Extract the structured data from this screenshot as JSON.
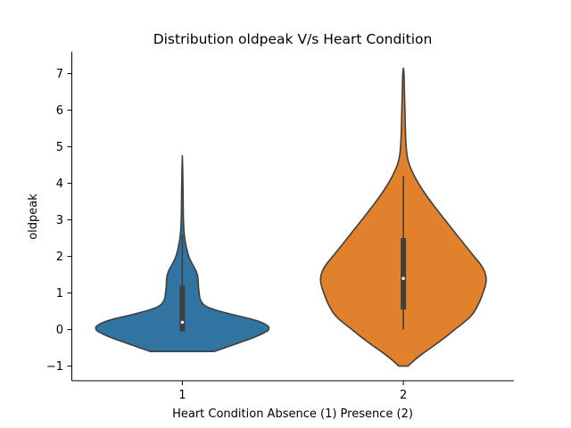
{
  "chart_data": {
    "type": "violin",
    "title": "Distribution oldpeak V/s Heart Condition",
    "xlabel": "Heart Condition Absence (1) Presence (2)",
    "ylabel": "oldpeak",
    "categories": [
      "1",
      "2"
    ],
    "ylim": [
      -1.4,
      7.6
    ],
    "yticks": [
      -1,
      0,
      1,
      2,
      3,
      4,
      5,
      6,
      7
    ],
    "ytick_labels": [
      "−1",
      "0",
      "1",
      "2",
      "3",
      "4",
      "5",
      "6",
      "7"
    ],
    "grid": false,
    "series": [
      {
        "category": "1",
        "color": "#3274a1",
        "whisker": [
          0.0,
          2.6
        ],
        "box": [
          -0.05,
          1.2
        ],
        "median": 0.2,
        "extent": [
          -0.6,
          4.75
        ],
        "density_profile": [
          [
            -0.6,
            0.36
          ],
          [
            -0.4,
            0.6
          ],
          [
            -0.2,
            0.83
          ],
          [
            -0.05,
            0.96
          ],
          [
            0.0,
            0.98
          ],
          [
            0.1,
            0.98
          ],
          [
            0.25,
            0.85
          ],
          [
            0.4,
            0.58
          ],
          [
            0.6,
            0.27
          ],
          [
            0.8,
            0.2
          ],
          [
            1.0,
            0.19
          ],
          [
            1.2,
            0.18
          ],
          [
            1.4,
            0.18
          ],
          [
            1.6,
            0.16
          ],
          [
            1.8,
            0.11
          ],
          [
            2.0,
            0.07
          ],
          [
            2.3,
            0.04
          ],
          [
            2.6,
            0.02
          ],
          [
            3.0,
            0.012
          ],
          [
            3.5,
            0.009
          ],
          [
            4.0,
            0.007
          ],
          [
            4.4,
            0.004
          ],
          [
            4.75,
            0.0
          ]
        ]
      },
      {
        "category": "2",
        "color": "#e1812c",
        "whisker": [
          0.0,
          4.2
        ],
        "box": [
          0.55,
          2.5
        ],
        "median": 1.4,
        "extent": [
          -1.0,
          7.15
        ],
        "density_profile": [
          [
            -1.0,
            0.05
          ],
          [
            -0.8,
            0.14
          ],
          [
            -0.6,
            0.25
          ],
          [
            -0.4,
            0.37
          ],
          [
            -0.2,
            0.48
          ],
          [
            0.0,
            0.58
          ],
          [
            0.2,
            0.69
          ],
          [
            0.4,
            0.78
          ],
          [
            0.6,
            0.83
          ],
          [
            0.8,
            0.87
          ],
          [
            1.0,
            0.9
          ],
          [
            1.2,
            0.93
          ],
          [
            1.4,
            0.94
          ],
          [
            1.6,
            0.92
          ],
          [
            1.8,
            0.87
          ],
          [
            2.0,
            0.8
          ],
          [
            2.3,
            0.7
          ],
          [
            2.6,
            0.6
          ],
          [
            3.0,
            0.47
          ],
          [
            3.4,
            0.34
          ],
          [
            3.8,
            0.22
          ],
          [
            4.2,
            0.12
          ],
          [
            4.6,
            0.05
          ],
          [
            5.0,
            0.03
          ],
          [
            5.5,
            0.022
          ],
          [
            6.0,
            0.018
          ],
          [
            6.5,
            0.012
          ],
          [
            7.0,
            0.008
          ],
          [
            7.15,
            0.0
          ]
        ]
      }
    ]
  }
}
